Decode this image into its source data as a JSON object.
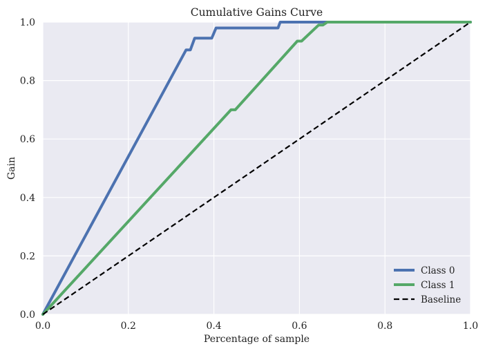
{
  "chart_data": {
    "type": "line",
    "title": "Cumulative Gains Curve",
    "xlabel": "Percentage of sample",
    "ylabel": "Gain",
    "xlim": [
      0.0,
      1.0
    ],
    "ylim": [
      0.0,
      1.0
    ],
    "xticks": [
      "0.0",
      "0.2",
      "0.4",
      "0.6",
      "0.8",
      "1.0"
    ],
    "yticks": [
      "0.0",
      "0.2",
      "0.4",
      "0.6",
      "0.8",
      "1.0"
    ],
    "grid": true,
    "legend_position": "bottom-right",
    "series": [
      {
        "name": "Class 0",
        "color": "#4c72b0",
        "style": "solid",
        "x": [
          0.0,
          0.335,
          0.345,
          0.355,
          0.395,
          0.405,
          0.55,
          0.555,
          1.0
        ],
        "y": [
          0.0,
          0.905,
          0.905,
          0.945,
          0.945,
          0.98,
          0.98,
          1.0,
          1.0
        ]
      },
      {
        "name": "Class 1",
        "color": "#55a868",
        "style": "solid",
        "x": [
          0.0,
          0.44,
          0.45,
          0.595,
          0.605,
          0.645,
          0.655,
          0.665,
          1.0
        ],
        "y": [
          0.0,
          0.7,
          0.7,
          0.935,
          0.935,
          0.99,
          0.99,
          1.0,
          1.0
        ]
      },
      {
        "name": "Baseline",
        "color": "#000000",
        "style": "dashed",
        "x": [
          0.0,
          1.0
        ],
        "y": [
          0.0,
          1.0
        ]
      }
    ]
  },
  "colors": {
    "plot_background": "#eaeaf2",
    "grid": "#ffffff"
  }
}
